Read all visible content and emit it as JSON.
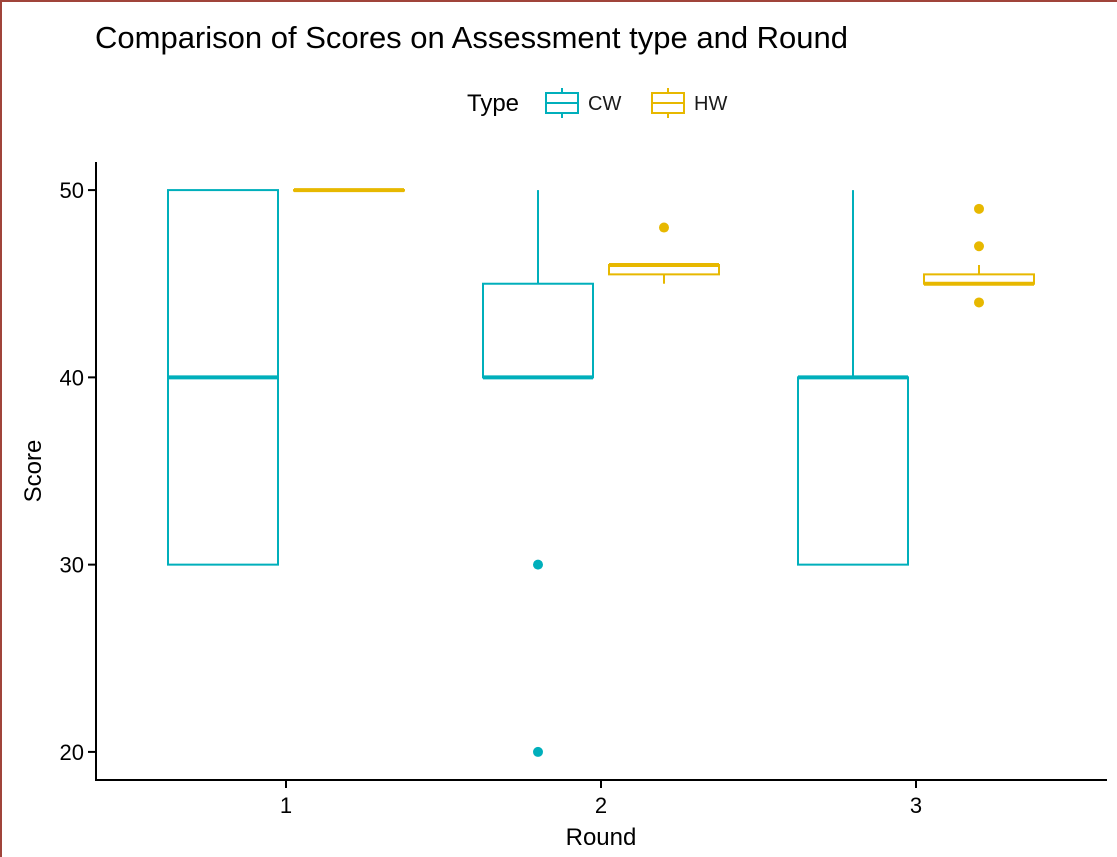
{
  "chart_data": {
    "type": "box",
    "title": "Comparison of Scores on Assessment type and Round",
    "xlabel": "Round",
    "ylabel": "Score",
    "categories": [
      "1",
      "2",
      "3"
    ],
    "ylim": [
      18.5,
      51.5
    ],
    "yticks": [
      20,
      30,
      40,
      50
    ],
    "grid": false,
    "legend": {
      "title": "Type",
      "position": "top"
    },
    "series": [
      {
        "name": "CW",
        "color": "#00afbb",
        "boxes": [
          {
            "category": "1",
            "min": 30,
            "q1": 30,
            "median": 40,
            "q3": 50,
            "max": 50,
            "outliers": []
          },
          {
            "category": "2",
            "min": 40,
            "q1": 40,
            "median": 40,
            "q3": 45,
            "max": 50,
            "outliers": [
              30,
              20
            ]
          },
          {
            "category": "3",
            "min": 30,
            "q1": 30,
            "median": 40,
            "q3": 40,
            "max": 50,
            "outliers": []
          }
        ]
      },
      {
        "name": "HW",
        "color": "#e7b800",
        "boxes": [
          {
            "category": "1",
            "min": 50,
            "q1": 50,
            "median": 50,
            "q3": 50,
            "max": 50,
            "outliers": []
          },
          {
            "category": "2",
            "min": 45,
            "q1": 45.5,
            "median": 46,
            "q3": 46,
            "max": 46,
            "outliers": [
              48
            ]
          },
          {
            "category": "3",
            "min": 45,
            "q1": 45,
            "median": 45,
            "q3": 45.5,
            "max": 46,
            "outliers": [
              49,
              47,
              44
            ]
          }
        ]
      }
    ]
  }
}
